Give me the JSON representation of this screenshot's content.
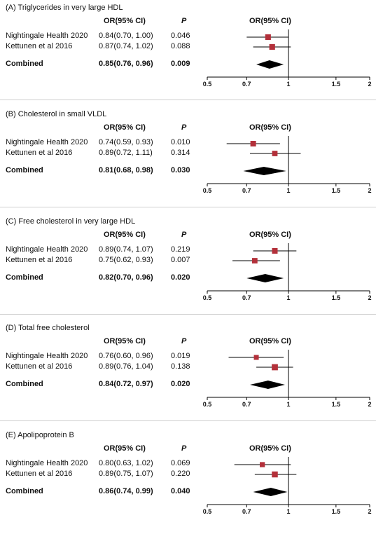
{
  "chart_data": [
    {
      "type": "forest",
      "panel_title": "(A) Triglycerides in very large HDL",
      "columns": {
        "or": "OR(95% CI)",
        "p": "P",
        "plot": "OR(95% CI)"
      },
      "x_ticks": [
        "0.5",
        "0.7",
        "1",
        "1.5",
        "2"
      ],
      "xlim": [
        0.5,
        2
      ],
      "reference_line": 1,
      "rows": [
        {
          "study": "Nightingale Health 2020",
          "or_text": "0.84(0.70, 1.00)",
          "p": "0.046",
          "or": 0.84,
          "lo": 0.7,
          "hi": 1.0,
          "weight": 0.62
        },
        {
          "study": "Kettunen et al 2016",
          "or_text": "0.87(0.74, 1.02)",
          "p": "0.088",
          "or": 0.87,
          "lo": 0.74,
          "hi": 1.02,
          "weight": 0.65
        }
      ],
      "combined": {
        "label": "Combined",
        "or_text": "0.85(0.76, 0.96)",
        "p": "0.009",
        "or": 0.85,
        "lo": 0.76,
        "hi": 0.96
      },
      "colors": {
        "marker": "#b3303a",
        "diamond": "#000000",
        "line": "#000000"
      }
    },
    {
      "type": "forest",
      "panel_title": "(B) Cholesterol in small VLDL",
      "columns": {
        "or": "OR(95% CI)",
        "p": "P",
        "plot": "OR(95% CI)"
      },
      "x_ticks": [
        "0.5",
        "0.7",
        "1",
        "1.5",
        "2"
      ],
      "xlim": [
        0.5,
        2
      ],
      "reference_line": 1,
      "rows": [
        {
          "study": "Nightingale Health 2020",
          "or_text": "0.74(0.59, 0.93)",
          "p": "0.010",
          "or": 0.74,
          "lo": 0.59,
          "hi": 0.93,
          "weight": 0.6
        },
        {
          "study": "Kettunen et al 2016",
          "or_text": "0.89(0.72, 1.11)",
          "p": "0.314",
          "or": 0.89,
          "lo": 0.72,
          "hi": 1.11,
          "weight": 0.55
        }
      ],
      "combined": {
        "label": "Combined",
        "or_text": "0.81(0.68, 0.98)",
        "p": "0.030",
        "or": 0.81,
        "lo": 0.68,
        "hi": 0.98
      },
      "colors": {
        "marker": "#b3303a",
        "diamond": "#000000",
        "line": "#000000"
      }
    },
    {
      "type": "forest",
      "panel_title": "(C) Free cholesterol in very large HDL",
      "columns": {
        "or": "OR(95% CI)",
        "p": "P",
        "plot": "OR(95% CI)"
      },
      "x_ticks": [
        "0.5",
        "0.7",
        "1",
        "1.5",
        "2"
      ],
      "xlim": [
        0.5,
        2
      ],
      "reference_line": 1,
      "rows": [
        {
          "study": "Nightingale Health 2020",
          "or_text": "0.89(0.74, 1.07)",
          "p": "0.219",
          "or": 0.89,
          "lo": 0.74,
          "hi": 1.07,
          "weight": 0.6
        },
        {
          "study": "Kettunen et al 2016",
          "or_text": "0.75(0.62, 0.93)",
          "p": "0.007",
          "or": 0.75,
          "lo": 0.62,
          "hi": 0.93,
          "weight": 0.55
        }
      ],
      "combined": {
        "label": "Combined",
        "or_text": "0.82(0.70, 0.96)",
        "p": "0.020",
        "or": 0.82,
        "lo": 0.7,
        "hi": 0.96
      },
      "colors": {
        "marker": "#b3303a",
        "diamond": "#000000",
        "line": "#000000"
      }
    },
    {
      "type": "forest",
      "panel_title": "(D) Total free cholesterol",
      "columns": {
        "or": "OR(95% CI)",
        "p": "P",
        "plot": "OR(95% CI)"
      },
      "x_ticks": [
        "0.5",
        "0.7",
        "1",
        "1.5",
        "2"
      ],
      "xlim": [
        0.5,
        2
      ],
      "reference_line": 1,
      "rows": [
        {
          "study": "Nightingale Health 2020",
          "or_text": "0.76(0.60, 0.96)",
          "p": "0.019",
          "or": 0.76,
          "lo": 0.6,
          "hi": 0.96,
          "weight": 0.4
        },
        {
          "study": "Kettunen et al 2016",
          "or_text": "0.89(0.76, 1.04)",
          "p": "0.138",
          "or": 0.89,
          "lo": 0.76,
          "hi": 1.04,
          "weight": 0.75
        }
      ],
      "combined": {
        "label": "Combined",
        "or_text": "0.84(0.72, 0.97)",
        "p": "0.020",
        "or": 0.84,
        "lo": 0.72,
        "hi": 0.97
      },
      "colors": {
        "marker": "#b3303a",
        "diamond": "#000000",
        "line": "#000000"
      }
    },
    {
      "type": "forest",
      "panel_title": "(E) Apolipoprotein B",
      "columns": {
        "or": "OR(95% CI)",
        "p": "P",
        "plot": "OR(95% CI)"
      },
      "x_ticks": [
        "0.5",
        "0.7",
        "1",
        "1.5",
        "2"
      ],
      "xlim": [
        0.5,
        2
      ],
      "reference_line": 1,
      "rows": [
        {
          "study": "Nightingale Health 2020",
          "or_text": "0.80(0.63, 1.02)",
          "p": "0.069",
          "or": 0.8,
          "lo": 0.63,
          "hi": 1.02,
          "weight": 0.45
        },
        {
          "study": "Kettunen et al 2016",
          "or_text": "0.89(0.75, 1.07)",
          "p": "0.220",
          "or": 0.89,
          "lo": 0.75,
          "hi": 1.07,
          "weight": 0.7
        }
      ],
      "combined": {
        "label": "Combined",
        "or_text": "0.86(0.74, 0.99)",
        "p": "0.040",
        "or": 0.86,
        "lo": 0.74,
        "hi": 0.99
      },
      "colors": {
        "marker": "#b3303a",
        "diamond": "#000000",
        "line": "#000000"
      }
    }
  ]
}
